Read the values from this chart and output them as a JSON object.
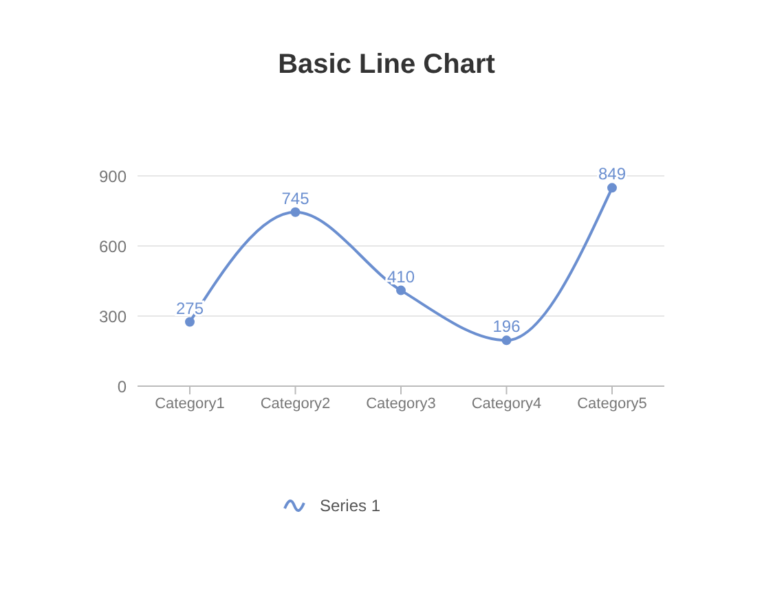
{
  "chart_data": {
    "type": "line",
    "title": "Basic Line Chart",
    "categories": [
      "Category1",
      "Category2",
      "Category3",
      "Category4",
      "Category5"
    ],
    "series": [
      {
        "name": "Series 1",
        "color": "#6b8fd0",
        "values": [
          275,
          745,
          410,
          196,
          849
        ]
      }
    ],
    "ylim": [
      0,
      900
    ],
    "yticks": [
      0,
      300,
      600,
      900
    ],
    "grid": "y",
    "legend": "bottom",
    "data_labels": true,
    "marker": "circle",
    "line_style": "solid"
  }
}
